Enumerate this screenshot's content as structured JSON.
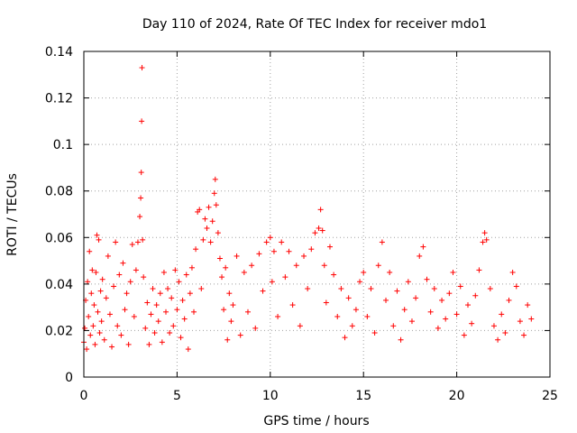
{
  "chart_data": {
    "type": "scatter",
    "title": "Day 110 of 2024, Rate Of TEC Index for receiver mdo1",
    "xlabel": "GPS time / hours",
    "ylabel": "ROTI / TECUs",
    "xlim": [
      0,
      25
    ],
    "ylim": [
      0,
      0.14
    ],
    "xticks": [
      0,
      5,
      10,
      15,
      20,
      25
    ],
    "xtick_labels": [
      "0",
      "5",
      "10",
      "15",
      "20",
      "25"
    ],
    "yticks": [
      0,
      0.02,
      0.04,
      0.06,
      0.08,
      0.1,
      0.12,
      0.14
    ],
    "ytick_labels": [
      "0",
      "0.02",
      "0.04",
      "0.06",
      "0.08",
      "0.1",
      "0.12",
      "0.14"
    ],
    "grid": true,
    "marker": "+",
    "series": [
      {
        "name": "ROTI",
        "color": "#ff0000",
        "points": [
          [
            0.0,
            0.015
          ],
          [
            0.05,
            0.021
          ],
          [
            0.1,
            0.033
          ],
          [
            0.15,
            0.012
          ],
          [
            0.2,
            0.041
          ],
          [
            0.25,
            0.026
          ],
          [
            0.3,
            0.054
          ],
          [
            0.35,
            0.018
          ],
          [
            0.4,
            0.036
          ],
          [
            0.45,
            0.046
          ],
          [
            0.5,
            0.022
          ],
          [
            0.55,
            0.031
          ],
          [
            0.6,
            0.014
          ],
          [
            0.65,
            0.045
          ],
          [
            0.7,
            0.061
          ],
          [
            0.75,
            0.028
          ],
          [
            0.8,
            0.059
          ],
          [
            0.85,
            0.019
          ],
          [
            0.9,
            0.037
          ],
          [
            0.95,
            0.024
          ],
          [
            1.0,
            0.042
          ],
          [
            1.1,
            0.016
          ],
          [
            1.2,
            0.034
          ],
          [
            1.3,
            0.052
          ],
          [
            1.4,
            0.027
          ],
          [
            1.5,
            0.013
          ],
          [
            1.6,
            0.039
          ],
          [
            1.7,
            0.058
          ],
          [
            1.8,
            0.022
          ],
          [
            1.9,
            0.044
          ],
          [
            2.0,
            0.018
          ],
          [
            2.1,
            0.049
          ],
          [
            2.2,
            0.029
          ],
          [
            2.3,
            0.036
          ],
          [
            2.4,
            0.014
          ],
          [
            2.5,
            0.041
          ],
          [
            2.6,
            0.057
          ],
          [
            2.7,
            0.026
          ],
          [
            2.8,
            0.046
          ],
          [
            2.9,
            0.058
          ],
          [
            3.0,
            0.069
          ],
          [
            3.05,
            0.077
          ],
          [
            3.08,
            0.088
          ],
          [
            3.1,
            0.11
          ],
          [
            3.12,
            0.133
          ],
          [
            3.15,
            0.059
          ],
          [
            3.2,
            0.043
          ],
          [
            3.3,
            0.021
          ],
          [
            3.4,
            0.032
          ],
          [
            3.5,
            0.014
          ],
          [
            3.6,
            0.027
          ],
          [
            3.7,
            0.038
          ],
          [
            3.8,
            0.019
          ],
          [
            3.9,
            0.031
          ],
          [
            4.0,
            0.024
          ],
          [
            4.1,
            0.036
          ],
          [
            4.2,
            0.015
          ],
          [
            4.3,
            0.045
          ],
          [
            4.4,
            0.028
          ],
          [
            4.5,
            0.038
          ],
          [
            4.6,
            0.019
          ],
          [
            4.7,
            0.034
          ],
          [
            4.8,
            0.022
          ],
          [
            4.9,
            0.046
          ],
          [
            5.0,
            0.029
          ],
          [
            5.1,
            0.041
          ],
          [
            5.2,
            0.017
          ],
          [
            5.3,
            0.033
          ],
          [
            5.4,
            0.025
          ],
          [
            5.5,
            0.044
          ],
          [
            5.6,
            0.012
          ],
          [
            5.7,
            0.036
          ],
          [
            5.8,
            0.047
          ],
          [
            5.9,
            0.028
          ],
          [
            6.0,
            0.055
          ],
          [
            6.1,
            0.071
          ],
          [
            6.2,
            0.072
          ],
          [
            6.3,
            0.038
          ],
          [
            6.4,
            0.059
          ],
          [
            6.5,
            0.068
          ],
          [
            6.6,
            0.064
          ],
          [
            6.7,
            0.073
          ],
          [
            6.8,
            0.058
          ],
          [
            6.9,
            0.067
          ],
          [
            7.0,
            0.079
          ],
          [
            7.05,
            0.085
          ],
          [
            7.1,
            0.074
          ],
          [
            7.2,
            0.062
          ],
          [
            7.3,
            0.051
          ],
          [
            7.4,
            0.043
          ],
          [
            7.5,
            0.029
          ],
          [
            7.6,
            0.047
          ],
          [
            7.7,
            0.016
          ],
          [
            7.8,
            0.036
          ],
          [
            7.9,
            0.024
          ],
          [
            8.0,
            0.031
          ],
          [
            8.2,
            0.052
          ],
          [
            8.4,
            0.018
          ],
          [
            8.6,
            0.045
          ],
          [
            8.8,
            0.028
          ],
          [
            9.0,
            0.048
          ],
          [
            9.2,
            0.021
          ],
          [
            9.4,
            0.053
          ],
          [
            9.6,
            0.037
          ],
          [
            9.8,
            0.058
          ],
          [
            10.0,
            0.06
          ],
          [
            10.1,
            0.041
          ],
          [
            10.2,
            0.054
          ],
          [
            10.4,
            0.026
          ],
          [
            10.6,
            0.058
          ],
          [
            10.8,
            0.043
          ],
          [
            11.0,
            0.054
          ],
          [
            11.2,
            0.031
          ],
          [
            11.4,
            0.048
          ],
          [
            11.6,
            0.022
          ],
          [
            11.8,
            0.052
          ],
          [
            12.0,
            0.038
          ],
          [
            12.2,
            0.055
          ],
          [
            12.4,
            0.062
          ],
          [
            12.6,
            0.064
          ],
          [
            12.7,
            0.072
          ],
          [
            12.8,
            0.063
          ],
          [
            12.9,
            0.048
          ],
          [
            13.0,
            0.032
          ],
          [
            13.2,
            0.056
          ],
          [
            13.4,
            0.044
          ],
          [
            13.6,
            0.026
          ],
          [
            13.8,
            0.038
          ],
          [
            14.0,
            0.017
          ],
          [
            14.2,
            0.034
          ],
          [
            14.4,
            0.022
          ],
          [
            14.6,
            0.029
          ],
          [
            14.8,
            0.041
          ],
          [
            15.0,
            0.045
          ],
          [
            15.2,
            0.026
          ],
          [
            15.4,
            0.038
          ],
          [
            15.6,
            0.019
          ],
          [
            15.8,
            0.048
          ],
          [
            16.0,
            0.058
          ],
          [
            16.2,
            0.033
          ],
          [
            16.4,
            0.045
          ],
          [
            16.6,
            0.022
          ],
          [
            16.8,
            0.037
          ],
          [
            17.0,
            0.016
          ],
          [
            17.2,
            0.029
          ],
          [
            17.4,
            0.041
          ],
          [
            17.6,
            0.024
          ],
          [
            17.8,
            0.034
          ],
          [
            18.0,
            0.052
          ],
          [
            18.2,
            0.056
          ],
          [
            18.4,
            0.042
          ],
          [
            18.6,
            0.028
          ],
          [
            18.8,
            0.038
          ],
          [
            19.0,
            0.021
          ],
          [
            19.2,
            0.033
          ],
          [
            19.4,
            0.025
          ],
          [
            19.6,
            0.036
          ],
          [
            19.8,
            0.045
          ],
          [
            20.0,
            0.027
          ],
          [
            20.2,
            0.039
          ],
          [
            20.4,
            0.018
          ],
          [
            20.6,
            0.031
          ],
          [
            20.8,
            0.023
          ],
          [
            21.0,
            0.035
          ],
          [
            21.2,
            0.046
          ],
          [
            21.4,
            0.058
          ],
          [
            21.5,
            0.062
          ],
          [
            21.6,
            0.059
          ],
          [
            21.8,
            0.038
          ],
          [
            22.0,
            0.022
          ],
          [
            22.2,
            0.016
          ],
          [
            22.4,
            0.027
          ],
          [
            22.6,
            0.019
          ],
          [
            22.8,
            0.033
          ],
          [
            23.0,
            0.045
          ],
          [
            23.2,
            0.039
          ],
          [
            23.4,
            0.024
          ],
          [
            23.6,
            0.018
          ],
          [
            23.8,
            0.031
          ],
          [
            24.0,
            0.025
          ]
        ]
      }
    ]
  }
}
